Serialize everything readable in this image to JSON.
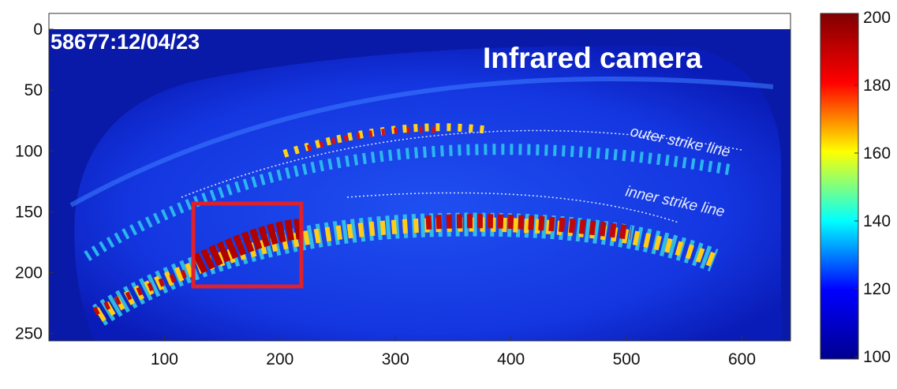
{
  "chart_data": {
    "type": "image",
    "annotations": [
      "58677:12/04/23",
      "Infrared camera",
      "outer strike line",
      "inner strike line"
    ],
    "xlim": [
      0,
      642
    ],
    "xticks": [
      100,
      200,
      300,
      400,
      500,
      600
    ],
    "ylim": [
      -13,
      256
    ],
    "yticks": [
      0,
      50,
      100,
      150,
      200,
      250
    ],
    "y_reversed": true,
    "colorbar": {
      "colormap": "jet",
      "clim": [
        100,
        200
      ],
      "ticks": [
        100,
        120,
        140,
        160,
        180,
        200
      ]
    }
  }
}
